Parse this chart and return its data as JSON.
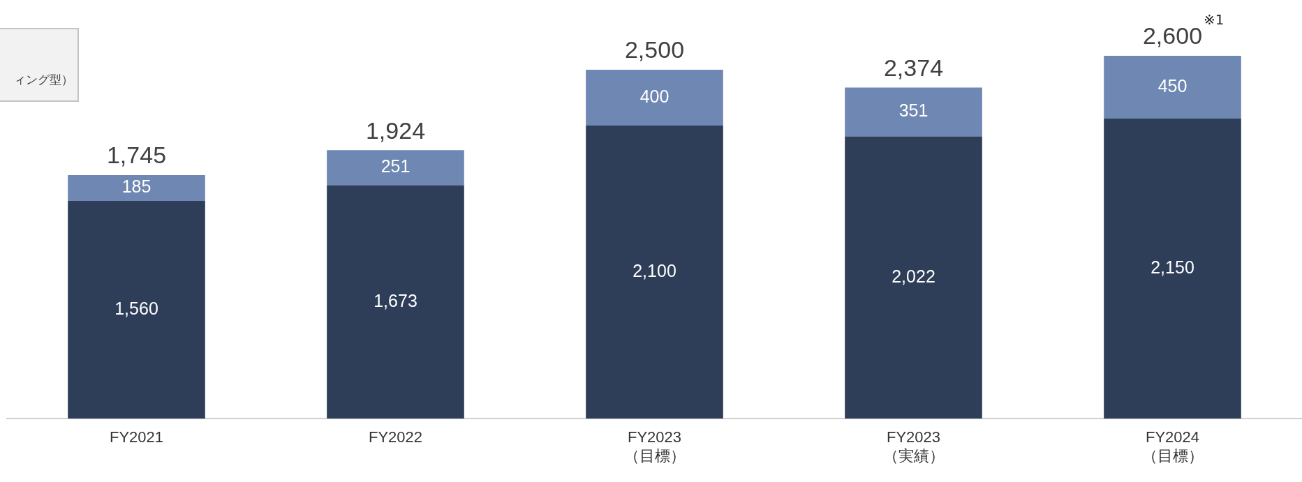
{
  "chart_data": {
    "type": "bar",
    "stacked": true,
    "categories": [
      "FY2021",
      "FY2022",
      "FY2023\n（目標）",
      "FY2023\n（実績）",
      "FY2024\n（目標）"
    ],
    "series": [
      {
        "color": "#2e3d58",
        "values": [
          1560,
          1673,
          2100,
          2022,
          2150
        ],
        "value_labels": [
          "1,560",
          "1,673",
          "2,100",
          "2,022",
          "2,150"
        ]
      },
      {
        "color": "#6f87b3",
        "values": [
          185,
          251,
          400,
          351,
          450
        ],
        "value_labels": [
          "185",
          "251",
          "400",
          "351",
          "450"
        ]
      }
    ],
    "tick_labels": "x",
    "grid": false,
    "totals": [
      "1,745",
      "1,924",
      "2,500",
      "2,374",
      "2,600"
    ],
    "annotations": [
      "ィング型）",
      {
        "text": "※1",
        "x": "FY2024\n（目標）",
        "y": 2600
      }
    ]
  }
}
